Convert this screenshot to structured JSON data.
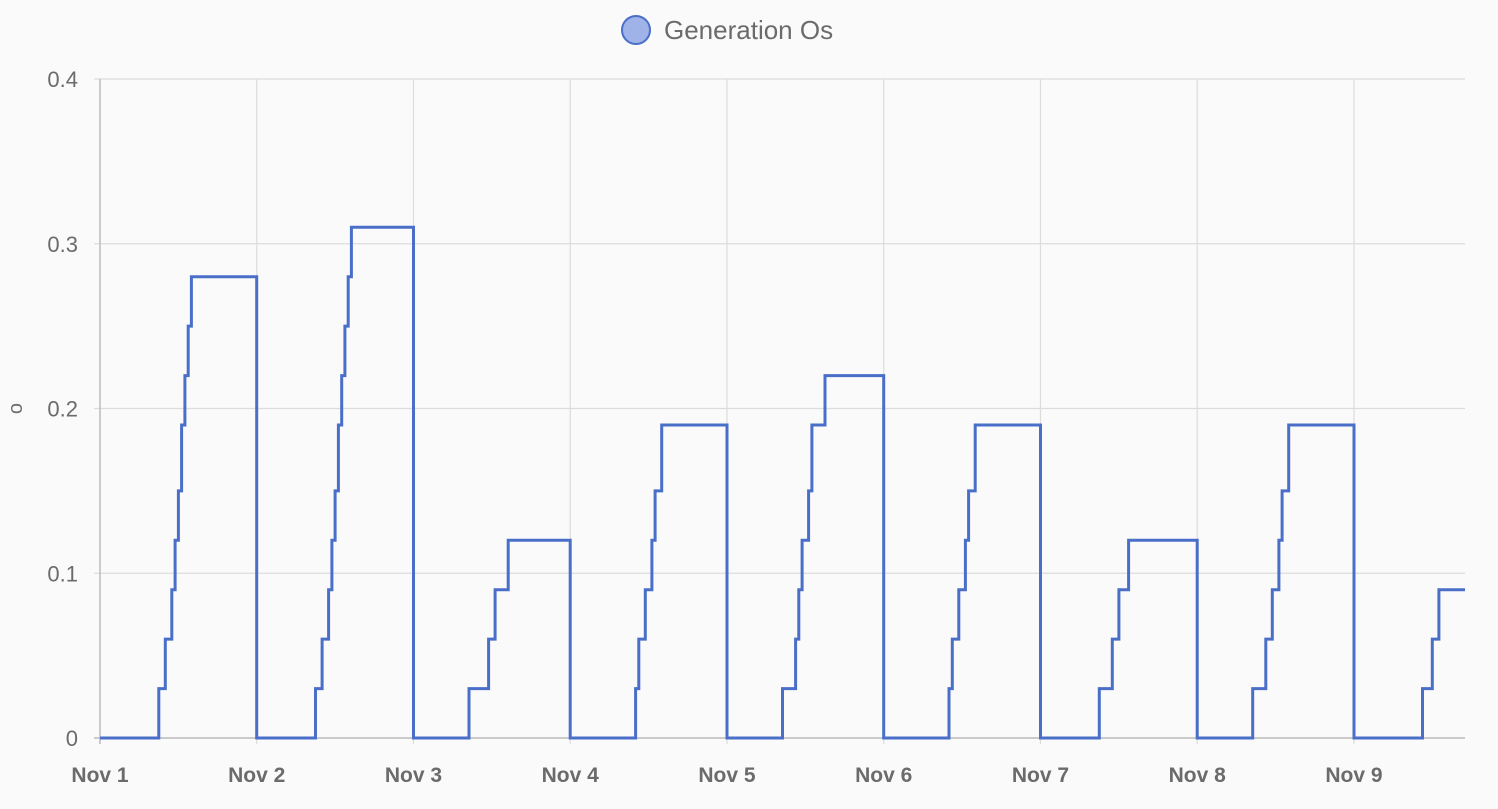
{
  "chart_data": {
    "type": "line",
    "step": true,
    "title": "",
    "xlabel": "",
    "ylabel": "o",
    "ylim": [
      0,
      0.4
    ],
    "yticks": [
      "0",
      "0.1",
      "0.2",
      "0.3",
      "0.4"
    ],
    "xlim": [
      "2023-11-01T00:00",
      "2023-11-09T17:00"
    ],
    "xtick_labels": [
      "Nov 1",
      "Nov 2",
      "Nov 3",
      "Nov 4",
      "Nov 5",
      "Nov 6",
      "Nov 7",
      "Nov 8",
      "Nov 9"
    ],
    "grid": true,
    "legend_position": "top-center",
    "series": [
      {
        "name": "Generation Os",
        "color": "#4a6fc8",
        "fill_color": "#9fb3e8",
        "points": [
          [
            "2023-11-01T00:00",
            0
          ],
          [
            "2023-11-01T09:00",
            0.03
          ],
          [
            "2023-11-01T10:00",
            0.06
          ],
          [
            "2023-11-01T11:00",
            0.09
          ],
          [
            "2023-11-01T11:30",
            0.12
          ],
          [
            "2023-11-01T12:00",
            0.15
          ],
          [
            "2023-11-01T12:30",
            0.19
          ],
          [
            "2023-11-01T13:00",
            0.22
          ],
          [
            "2023-11-01T13:30",
            0.25
          ],
          [
            "2023-11-01T14:00",
            0.28
          ],
          [
            "2023-11-02T00:00",
            0
          ],
          [
            "2023-11-02T09:00",
            0.03
          ],
          [
            "2023-11-02T10:00",
            0.06
          ],
          [
            "2023-11-02T11:00",
            0.09
          ],
          [
            "2023-11-02T11:30",
            0.12
          ],
          [
            "2023-11-02T12:00",
            0.15
          ],
          [
            "2023-11-02T12:30",
            0.19
          ],
          [
            "2023-11-02T13:00",
            0.22
          ],
          [
            "2023-11-02T13:30",
            0.25
          ],
          [
            "2023-11-02T14:00",
            0.28
          ],
          [
            "2023-11-02T14:30",
            0.31
          ],
          [
            "2023-11-03T00:00",
            0
          ],
          [
            "2023-11-03T08:30",
            0.03
          ],
          [
            "2023-11-03T11:30",
            0.06
          ],
          [
            "2023-11-03T12:30",
            0.09
          ],
          [
            "2023-11-03T14:30",
            0.12
          ],
          [
            "2023-11-04T00:00",
            0
          ],
          [
            "2023-11-04T10:00",
            0.03
          ],
          [
            "2023-11-04T10:30",
            0.06
          ],
          [
            "2023-11-04T11:30",
            0.09
          ],
          [
            "2023-11-04T12:30",
            0.12
          ],
          [
            "2023-11-04T13:00",
            0.15
          ],
          [
            "2023-11-04T14:00",
            0.19
          ],
          [
            "2023-11-05T00:00",
            0
          ],
          [
            "2023-11-05T08:30",
            0.03
          ],
          [
            "2023-11-05T10:30",
            0.06
          ],
          [
            "2023-11-05T11:00",
            0.09
          ],
          [
            "2023-11-05T11:30",
            0.12
          ],
          [
            "2023-11-05T12:30",
            0.15
          ],
          [
            "2023-11-05T13:00",
            0.19
          ],
          [
            "2023-11-05T15:00",
            0.22
          ],
          [
            "2023-11-06T00:00",
            0
          ],
          [
            "2023-11-06T10:00",
            0.03
          ],
          [
            "2023-11-06T10:30",
            0.06
          ],
          [
            "2023-11-06T11:30",
            0.09
          ],
          [
            "2023-11-06T12:30",
            0.12
          ],
          [
            "2023-11-06T13:00",
            0.15
          ],
          [
            "2023-11-06T14:00",
            0.19
          ],
          [
            "2023-11-07T00:00",
            0
          ],
          [
            "2023-11-07T09:00",
            0.03
          ],
          [
            "2023-11-07T11:00",
            0.06
          ],
          [
            "2023-11-07T12:00",
            0.09
          ],
          [
            "2023-11-07T13:30",
            0.12
          ],
          [
            "2023-11-08T00:00",
            0
          ],
          [
            "2023-11-08T08:30",
            0.03
          ],
          [
            "2023-11-08T10:30",
            0.06
          ],
          [
            "2023-11-08T11:30",
            0.09
          ],
          [
            "2023-11-08T12:30",
            0.12
          ],
          [
            "2023-11-08T13:00",
            0.15
          ],
          [
            "2023-11-08T14:00",
            0.19
          ],
          [
            "2023-11-09T00:00",
            0
          ],
          [
            "2023-11-09T10:30",
            0.03
          ],
          [
            "2023-11-09T12:00",
            0.06
          ],
          [
            "2023-11-09T13:00",
            0.09
          ],
          [
            "2023-11-09T17:00",
            0.09
          ]
        ]
      }
    ]
  }
}
